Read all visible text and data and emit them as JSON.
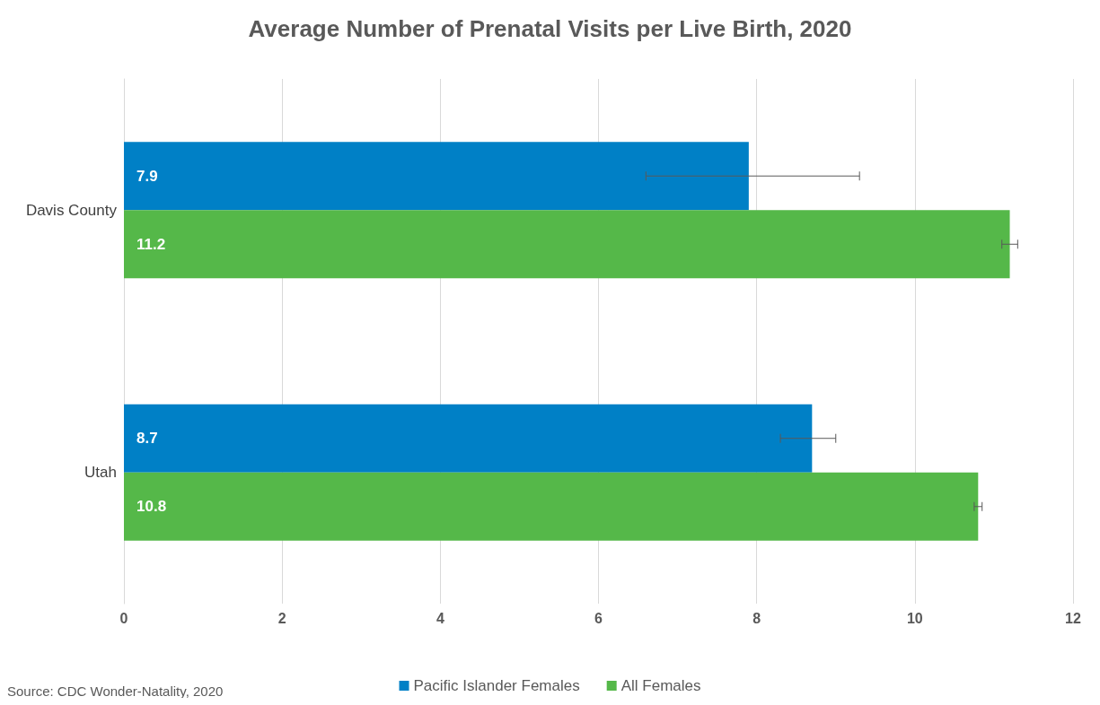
{
  "chart_data": {
    "type": "bar",
    "orientation": "horizontal",
    "title": "Average Number of Prenatal Visits per Live Birth, 2020",
    "categories": [
      "Davis County",
      "Utah"
    ],
    "series": [
      {
        "name": "Pacific Islander Females",
        "color": "#0080c6",
        "values": [
          7.9,
          8.7
        ],
        "errors": [
          [
            6.6,
            9.3
          ],
          [
            8.3,
            9.0
          ]
        ]
      },
      {
        "name": "All Females",
        "color": "#55b849",
        "values": [
          11.2,
          10.8
        ],
        "errors": [
          [
            11.1,
            11.3
          ],
          [
            10.75,
            10.85
          ]
        ]
      }
    ],
    "xlim": [
      0,
      12
    ],
    "xticks": [
      0,
      2,
      4,
      6,
      8,
      10,
      12
    ],
    "grid": "x",
    "legend": "bottom",
    "data_labels": true,
    "annotations": [
      "Source: CDC Wonder-Natality, 2020"
    ]
  }
}
